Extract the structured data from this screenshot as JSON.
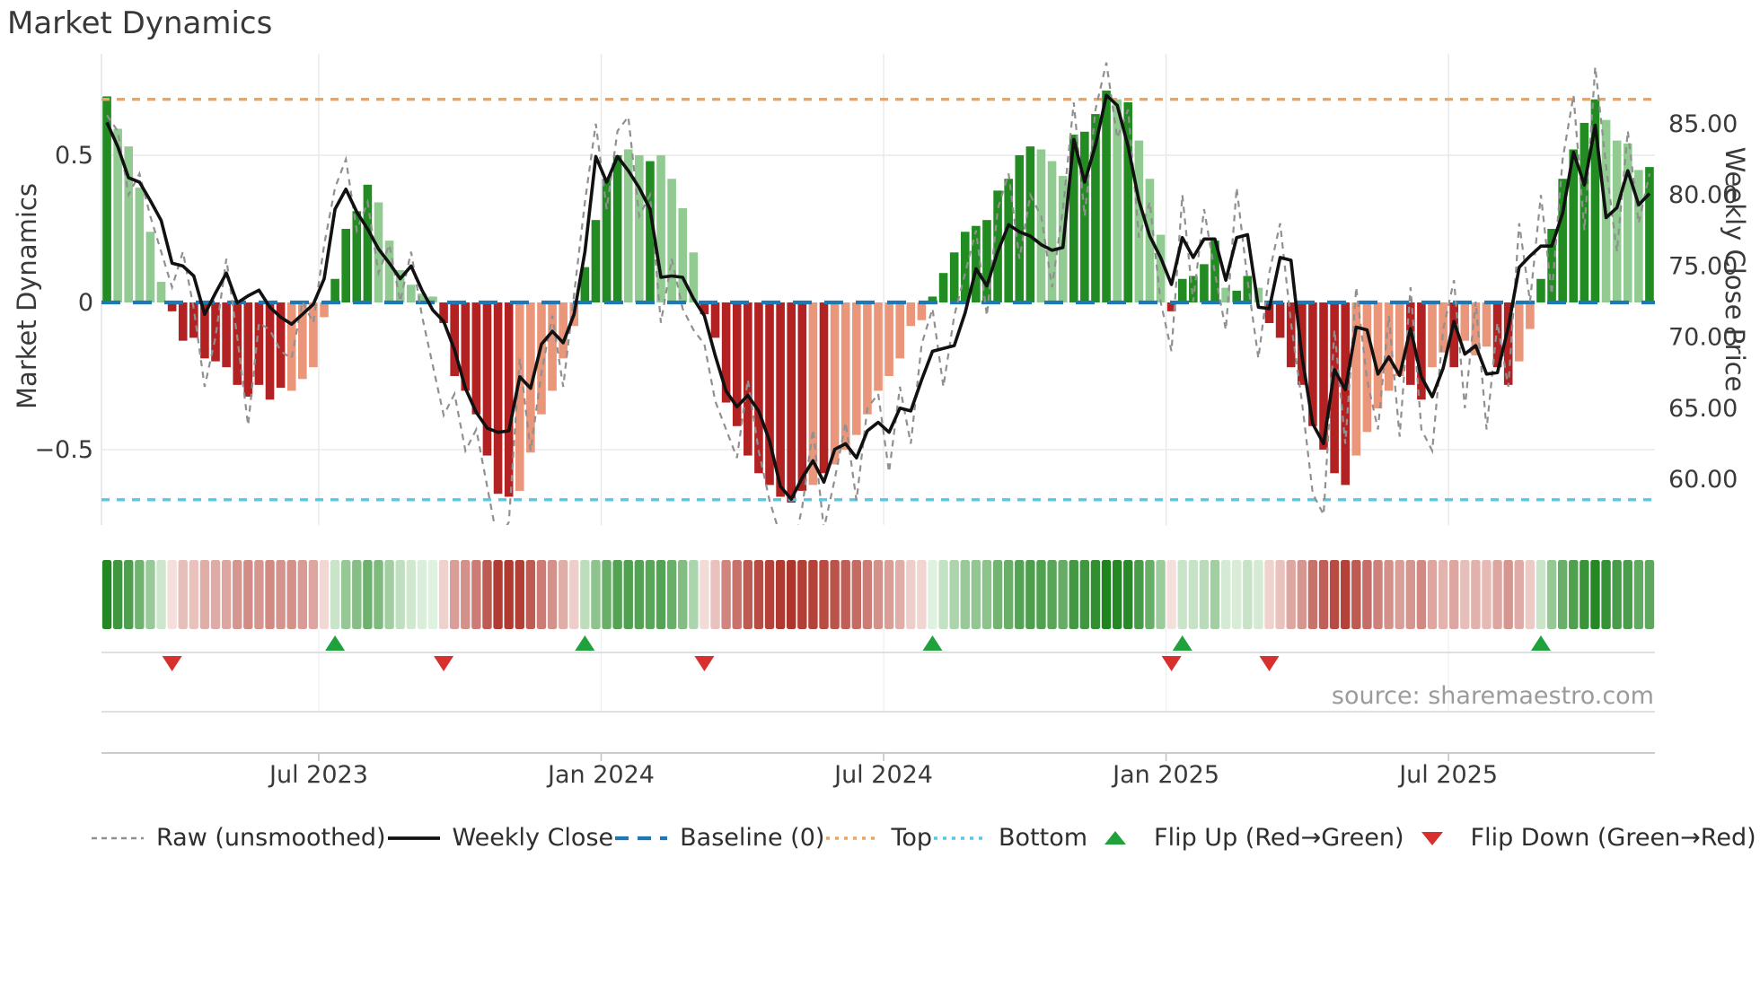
{
  "title": "Market Dynamics",
  "source": "source: sharemaestro.com",
  "left_axis_title": "Market Dynamics",
  "right_axis_title": "Weekly Close Price",
  "chart_data": {
    "type": "bar+line",
    "title": "Market Dynamics",
    "ylabel_left": "Market Dynamics",
    "ylabel_right": "Weekly Close Price",
    "n_weeks": 143,
    "x_ticks": [
      {
        "week": 20,
        "label": "Jul 2023"
      },
      {
        "week": 46,
        "label": "Jan 2024"
      },
      {
        "week": 72,
        "label": "Jul 2024"
      },
      {
        "week": 98,
        "label": "Jan 2025"
      },
      {
        "week": 124,
        "label": "Jul 2025"
      }
    ],
    "osc_axis": {
      "min": -0.756,
      "max": 0.8445,
      "ticks": [
        {
          "v": 0.5,
          "label": "0.5"
        },
        {
          "v": 0,
          "label": "0"
        },
        {
          "v": -0.5,
          "label": "−0.5"
        }
      ]
    },
    "price_axis": {
      "min": 56.78,
      "max": 89.92,
      "ticks": [
        {
          "v": 85,
          "label": "85.00"
        },
        {
          "v": 80,
          "label": "80.00"
        },
        {
          "v": 75,
          "label": "75.00"
        },
        {
          "v": 70,
          "label": "70.00"
        },
        {
          "v": 65,
          "label": "65.00"
        },
        {
          "v": 60,
          "label": "60.00"
        }
      ]
    },
    "baseline": 0,
    "top_line": 0.69,
    "bottom_line": -0.67,
    "oscillator_bars": [
      0.7,
      0.59,
      0.53,
      0.39,
      0.24,
      0.07,
      -0.03,
      -0.13,
      -0.12,
      -0.19,
      -0.2,
      -0.22,
      -0.28,
      -0.32,
      -0.28,
      -0.33,
      -0.29,
      -0.3,
      -0.26,
      -0.22,
      -0.05,
      0.08,
      0.25,
      0.31,
      0.4,
      0.34,
      0.21,
      0.11,
      0.06,
      0.03,
      0.02,
      -0.07,
      -0.25,
      -0.3,
      -0.38,
      -0.52,
      -0.65,
      -0.66,
      -0.64,
      -0.51,
      -0.38,
      -0.3,
      -0.19,
      -0.08,
      0.12,
      0.28,
      0.42,
      0.5,
      0.52,
      0.5,
      0.48,
      0.5,
      0.42,
      0.32,
      0.17,
      -0.04,
      -0.12,
      -0.34,
      -0.42,
      -0.52,
      -0.58,
      -0.62,
      -0.66,
      -0.68,
      -0.64,
      -0.62,
      -0.58,
      -0.55,
      -0.5,
      -0.45,
      -0.38,
      -0.3,
      -0.25,
      -0.19,
      -0.08,
      -0.06,
      0.02,
      0.1,
      0.17,
      0.24,
      0.26,
      0.28,
      0.38,
      0.42,
      0.5,
      0.53,
      0.52,
      0.48,
      0.43,
      0.57,
      0.58,
      0.64,
      0.72,
      0.69,
      0.68,
      0.55,
      0.42,
      0.23,
      -0.03,
      0.08,
      0.09,
      0.13,
      0.21,
      0.05,
      0.04,
      0.09,
      0.05,
      -0.07,
      -0.12,
      -0.22,
      -0.28,
      -0.42,
      -0.5,
      -0.58,
      -0.62,
      -0.52,
      -0.44,
      -0.36,
      -0.3,
      -0.25,
      -0.28,
      -0.33,
      -0.22,
      -0.17,
      -0.22,
      -0.13,
      -0.18,
      -0.15,
      -0.22,
      -0.28,
      -0.2,
      -0.09,
      0.08,
      0.25,
      0.42,
      0.52,
      0.61,
      0.69,
      0.62,
      0.55,
      0.54,
      0.45,
      0.46
    ],
    "bar_shades": [
      "dg",
      "lg",
      "lg",
      "lg",
      "lg",
      "lg",
      "dr",
      "dr",
      "dr",
      "dr",
      "dr",
      "dr",
      "dr",
      "dr",
      "dr",
      "dr",
      "dr",
      "lr",
      "lr",
      "lr",
      "lr",
      "dg",
      "dg",
      "dg",
      "dg",
      "lg",
      "lg",
      "lg",
      "lg",
      "lg",
      "lg",
      "dr",
      "dr",
      "dr",
      "dr",
      "dr",
      "dr",
      "dr",
      "lr",
      "lr",
      "lr",
      "lr",
      "lr",
      "lr",
      "dg",
      "dg",
      "dg",
      "dg",
      "lg",
      "lg",
      "dg",
      "lg",
      "lg",
      "lg",
      "lg",
      "dr",
      "dr",
      "dr",
      "dr",
      "dr",
      "dr",
      "dr",
      "dr",
      "dr",
      "dr",
      "lr",
      "dr",
      "lr",
      "lr",
      "lr",
      "lr",
      "lr",
      "lr",
      "lr",
      "lr",
      "lr",
      "dg",
      "dg",
      "dg",
      "dg",
      "dg",
      "dg",
      "dg",
      "dg",
      "dg",
      "dg",
      "lg",
      "lg",
      "lg",
      "dg",
      "dg",
      "dg",
      "dg",
      "lg",
      "dg",
      "lg",
      "lg",
      "lg",
      "dr",
      "dg",
      "dg",
      "dg",
      "dg",
      "lg",
      "dg",
      "dg",
      "lg",
      "dr",
      "dr",
      "dr",
      "dr",
      "dr",
      "dr",
      "dr",
      "dr",
      "lr",
      "lr",
      "lr",
      "lr",
      "lr",
      "dr",
      "dr",
      "lr",
      "lr",
      "dr",
      "lr",
      "lr",
      "lr",
      "dr",
      "dr",
      "lr",
      "lr",
      "dg",
      "dg",
      "dg",
      "dg",
      "dg",
      "dg",
      "lg",
      "lg",
      "lg",
      "lg",
      "dg"
    ],
    "weekly_close": [
      85.1,
      83.4,
      81.2,
      80.9,
      79.6,
      78.2,
      75.2,
      75.0,
      74.3,
      71.6,
      73.1,
      74.5,
      72.4,
      72.9,
      73.3,
      72.1,
      71.4,
      70.9,
      71.6,
      72.3,
      74.1,
      79.0,
      80.4,
      78.8,
      77.6,
      76.2,
      75.2,
      74.1,
      75.0,
      73.3,
      71.9,
      71.1,
      69.1,
      66.4,
      64.7,
      63.6,
      63.3,
      63.4,
      67.2,
      66.4,
      69.5,
      70.4,
      69.6,
      71.6,
      76.0,
      82.7,
      80.9,
      82.7,
      81.7,
      80.5,
      79.0,
      74.2,
      74.3,
      74.2,
      72.7,
      71.5,
      68.7,
      66.2,
      65.1,
      65.9,
      64.8,
      62.7,
      59.5,
      58.6,
      60.1,
      61.3,
      59.8,
      62.1,
      62.5,
      61.5,
      63.4,
      64.0,
      63.3,
      65.0,
      64.8,
      67.0,
      69.0,
      69.2,
      69.4,
      71.7,
      74.8,
      73.6,
      76.0,
      77.9,
      77.4,
      77.1,
      76.5,
      76.1,
      76.3,
      83.9,
      80.9,
      83.5,
      87.0,
      86.3,
      83.4,
      79.6,
      77.1,
      75.6,
      73.7,
      77.0,
      75.6,
      76.9,
      76.9,
      74.0,
      77.0,
      77.2,
      72.1,
      72.0,
      75.6,
      75.4,
      68.7,
      63.9,
      62.5,
      67.7,
      66.3,
      70.7,
      70.5,
      67.4,
      68.6,
      67.3,
      70.6,
      67.2,
      65.8,
      67.8,
      71.1,
      68.8,
      69.4,
      67.4,
      67.5,
      70.7,
      74.9,
      75.7,
      76.4,
      76.4,
      78.7,
      83.0,
      80.7,
      84.9,
      78.4,
      79.1,
      81.7,
      79.3,
      80.1
    ],
    "raw_unsmoothed": [
      85.6,
      84.5,
      80.0,
      81.5,
      78.5,
      76.0,
      73.5,
      76.0,
      72.0,
      66.5,
      70.0,
      75.5,
      70.0,
      63.8,
      71.0,
      70.5,
      69.0,
      68.5,
      72.5,
      71.0,
      76.5,
      80.5,
      82.5,
      77.5,
      79.5,
      74.5,
      76.5,
      72.5,
      76.0,
      71.5,
      68.0,
      64.5,
      66.0,
      62.0,
      63.5,
      59.5,
      55.5,
      57.0,
      68.5,
      62.0,
      67.5,
      71.5,
      66.5,
      73.0,
      79.5,
      85.0,
      79.0,
      84.5,
      85.5,
      78.5,
      80.0,
      71.0,
      75.5,
      72.0,
      70.5,
      69.5,
      65.5,
      63.5,
      61.5,
      67.0,
      62.0,
      58.5,
      56.0,
      54.5,
      58.0,
      63.5,
      56.5,
      60.0,
      64.0,
      58.5,
      65.0,
      66.0,
      60.5,
      66.5,
      62.5,
      69.5,
      72.0,
      66.5,
      71.5,
      74.5,
      77.5,
      71.5,
      79.0,
      81.5,
      75.5,
      80.0,
      78.5,
      73.5,
      79.0,
      86.5,
      78.5,
      86.0,
      89.3,
      84.0,
      86.0,
      77.0,
      79.5,
      72.5,
      69.0,
      80.0,
      72.5,
      79.0,
      74.5,
      70.5,
      80.5,
      74.0,
      68.5,
      74.5,
      78.0,
      71.0,
      65.5,
      59.0,
      57.5,
      70.5,
      62.5,
      73.5,
      67.0,
      63.5,
      71.5,
      63.0,
      73.5,
      63.5,
      62.0,
      70.5,
      74.0,
      65.0,
      72.5,
      63.5,
      71.0,
      66.5,
      78.0,
      72.5,
      80.0,
      73.0,
      82.5,
      87.0,
      77.5,
      89.0,
      82.0,
      76.0,
      84.5,
      78.0,
      81.5
    ],
    "flip_up_weeks": [
      21,
      44,
      76,
      99,
      132
    ],
    "flip_down_weeks": [
      6,
      31,
      55,
      98,
      107
    ],
    "legend_position": "bottom",
    "grid": "on"
  },
  "legend": {
    "items": [
      {
        "label": "Raw (unsmoothed)",
        "type": "dashed-gray-line"
      },
      {
        "label": "Weekly Close",
        "type": "solid-black-line"
      },
      {
        "label": "Baseline (0)",
        "type": "dashed-blue-line"
      },
      {
        "label": "Top",
        "type": "dotted-orange-line"
      },
      {
        "label": "Bottom",
        "type": "dotted-cyan-line"
      },
      {
        "label": "Flip Up (Red→Green)",
        "type": "green-up-triangle"
      },
      {
        "label": "Flip Down (Green→Red)",
        "type": "red-down-triangle"
      }
    ]
  },
  "colors": {
    "bar_dark_green": "#228b22",
    "bar_light_green": "#92cb92",
    "bar_dark_red": "#b22222",
    "bar_light_red": "#e9967a",
    "weekly_close": "#111111",
    "raw": "#909090",
    "baseline": "#1f77b4",
    "top": "#f0a35e",
    "bottom": "#55c8e8",
    "flip_up": "#1fa23c",
    "flip_down": "#d8302f",
    "grid": "#e8e8e8",
    "spine": "#c4c4c4",
    "axis_text": "#3a3a3a",
    "heat_pos": "#1e841e",
    "heat_neg": "#ac3026"
  }
}
